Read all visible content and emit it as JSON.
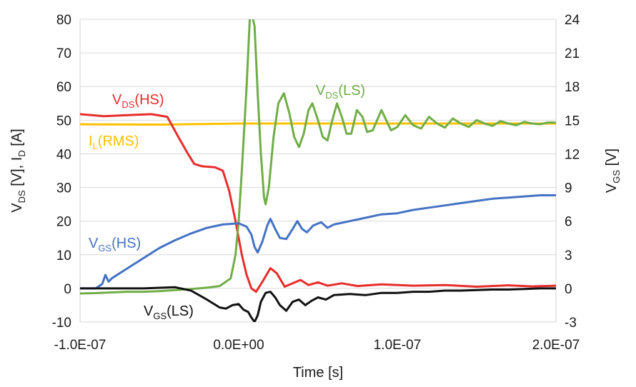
{
  "chart_data": {
    "type": "line",
    "x_axis": {
      "label": "Time [s]",
      "range": [
        -1e-07,
        2e-07
      ],
      "ticks": [
        {
          "value": -1e-07,
          "label": "-1.0E-07"
        },
        {
          "value": 0,
          "label": "0.0E+00"
        },
        {
          "value": 1e-07,
          "label": "1.0E-07"
        },
        {
          "value": 2e-07,
          "label": "2.0E-07"
        }
      ]
    },
    "y_left": {
      "label": {
        "parts": [
          {
            "t": "V",
            "sub": false
          },
          {
            "t": "DS",
            "sub": true
          },
          {
            "t": " [V], I",
            "sub": false
          },
          {
            "t": "D",
            "sub": true
          },
          {
            "t": " [A]",
            "sub": false
          }
        ]
      },
      "range": [
        -10,
        80
      ],
      "ticks": [
        "-10",
        "0",
        "10",
        "20",
        "30",
        "40",
        "50",
        "60",
        "70",
        "80"
      ]
    },
    "y_right": {
      "label": {
        "parts": [
          {
            "t": "V",
            "sub": false
          },
          {
            "t": "GS",
            "sub": true
          },
          {
            "t": " [V]",
            "sub": false
          }
        ]
      },
      "range": [
        -3,
        24
      ],
      "ticks": [
        "-3",
        "0",
        "3",
        "6",
        "9",
        "12",
        "15",
        "18",
        "21",
        "24"
      ]
    },
    "grid": "horizontal",
    "series": [
      {
        "id": "il",
        "axis": "left",
        "color": "#FFC000",
        "label": {
          "parts": [
            {
              "t": "I",
              "sub": false
            },
            {
              "t": "L",
              "sub": true
            },
            {
              "t": "(RMS)",
              "sub": false
            }
          ]
        },
        "points": [
          [
            -1e-07,
            48.8
          ],
          [
            -5e-08,
            48.7
          ],
          [
            0,
            49.0
          ],
          [
            5e-08,
            49.0
          ],
          [
            1e-07,
            49.0
          ],
          [
            1.5e-07,
            49.0
          ],
          [
            2e-07,
            49.0
          ]
        ]
      },
      {
        "id": "vds_hs",
        "axis": "left",
        "color": "#E82C2C",
        "label": {
          "parts": [
            {
              "t": "V",
              "sub": false
            },
            {
              "t": "DS",
              "sub": true
            },
            {
              "t": "(HS)",
              "sub": false
            }
          ]
        },
        "points": [
          [
            -1e-07,
            51.8
          ],
          [
            -8.5e-08,
            51.2
          ],
          [
            -7e-08,
            51.5
          ],
          [
            -5.5e-08,
            51.8
          ],
          [
            -4.5e-08,
            51.0
          ],
          [
            -3.8e-08,
            45.0
          ],
          [
            -3.2e-08,
            40.0
          ],
          [
            -2.8e-08,
            37.0
          ],
          [
            -2.3e-08,
            36.3
          ],
          [
            -1.5e-08,
            36.0
          ],
          [
            -1e-08,
            35.0
          ],
          [
            -6e-09,
            29.0
          ],
          [
            -2e-09,
            20.0
          ],
          [
            2e-09,
            10.0
          ],
          [
            5e-09,
            4.0
          ],
          [
            8e-09,
            0.0
          ],
          [
            1.1e-08,
            -1.0
          ],
          [
            1.5e-08,
            2.0
          ],
          [
            2e-08,
            6.0
          ],
          [
            2.4e-08,
            4.5
          ],
          [
            2.9e-08,
            0.5
          ],
          [
            3.4e-08,
            1.5
          ],
          [
            3.9e-08,
            2.5
          ],
          [
            4.4e-08,
            1.0
          ],
          [
            5e-08,
            1.8
          ],
          [
            5.6e-08,
            0.8
          ],
          [
            6.5e-08,
            1.5
          ],
          [
            7.5e-08,
            0.7
          ],
          [
            9e-08,
            1.2
          ],
          [
            1.1e-07,
            0.8
          ],
          [
            1.3e-07,
            1.0
          ],
          [
            1.5e-07,
            0.5
          ],
          [
            1.7e-07,
            0.9
          ],
          [
            1.85e-07,
            0.6
          ],
          [
            2e-07,
            0.8
          ]
        ]
      },
      {
        "id": "vds_ls",
        "axis": "left",
        "color": "#70AD47",
        "label": {
          "parts": [
            {
              "t": "V",
              "sub": false
            },
            {
              "t": "DS",
              "sub": true
            },
            {
              "t": "(LS)",
              "sub": false
            }
          ]
        },
        "points": [
          [
            -1e-07,
            -1.5
          ],
          [
            -9e-08,
            -1.4
          ],
          [
            -8e-08,
            -1.2
          ],
          [
            -7e-08,
            -1.0
          ],
          [
            -6e-08,
            -1.0
          ],
          [
            -5e-08,
            -0.8
          ],
          [
            -4e-08,
            -0.5
          ],
          [
            -3e-08,
            -0.2
          ],
          [
            -2e-08,
            0.2
          ],
          [
            -1.2e-08,
            0.7
          ],
          [
            -5e-09,
            3.0
          ],
          [
            -2e-09,
            10.0
          ],
          [
            0,
            20.0
          ],
          [
            2e-09,
            35.0
          ],
          [
            5e-09,
            60.0
          ],
          [
            7e-09,
            80.0
          ],
          [
            8e-09,
            82.0
          ],
          [
            1e-08,
            78.0
          ],
          [
            1.2e-08,
            58.0
          ],
          [
            1.4e-08,
            40.0
          ],
          [
            1.6e-08,
            27.0
          ],
          [
            1.7e-08,
            25.0
          ],
          [
            1.9e-08,
            30.0
          ],
          [
            2.2e-08,
            45.0
          ],
          [
            2.5e-08,
            55.0
          ],
          [
            2.85e-08,
            58.0
          ],
          [
            3.2e-08,
            52.0
          ],
          [
            3.5e-08,
            45.0
          ],
          [
            3.8e-08,
            42.0
          ],
          [
            4.1e-08,
            46.0
          ],
          [
            4.4e-08,
            53.0
          ],
          [
            4.65e-08,
            55.0
          ],
          [
            5e-08,
            50.0
          ],
          [
            5.3e-08,
            45.0
          ],
          [
            5.6e-08,
            44.0
          ],
          [
            5.9e-08,
            50.0
          ],
          [
            6.2e-08,
            55.0
          ],
          [
            6.5e-08,
            51.0
          ],
          [
            6.8e-08,
            46.0
          ],
          [
            7.1e-08,
            46.0
          ],
          [
            7.45e-08,
            53.0
          ],
          [
            7.8e-08,
            51.0
          ],
          [
            8.1e-08,
            46.5
          ],
          [
            8.45e-08,
            47.0
          ],
          [
            9e-08,
            53.0
          ],
          [
            9.3e-08,
            50.0
          ],
          [
            9.6e-08,
            47.0
          ],
          [
            1e-07,
            48.0
          ],
          [
            1.05e-07,
            51.5
          ],
          [
            1.1e-07,
            48.5
          ],
          [
            1.15e-07,
            47.5
          ],
          [
            1.2e-07,
            51.0
          ],
          [
            1.25e-07,
            49.0
          ],
          [
            1.3e-07,
            47.8
          ],
          [
            1.35e-07,
            50.5
          ],
          [
            1.4e-07,
            49.0
          ],
          [
            1.45e-07,
            48.0
          ],
          [
            1.5e-07,
            50.0
          ],
          [
            1.55e-07,
            49.0
          ],
          [
            1.6e-07,
            48.3
          ],
          [
            1.65e-07,
            49.7
          ],
          [
            1.7e-07,
            49.0
          ],
          [
            1.75e-07,
            48.5
          ],
          [
            1.8e-07,
            49.5
          ],
          [
            1.85e-07,
            49.0
          ],
          [
            1.9e-07,
            48.8
          ],
          [
            1.95e-07,
            49.3
          ],
          [
            2e-07,
            49.3
          ]
        ]
      },
      {
        "id": "vgs_hs",
        "axis": "right",
        "color": "#4472C4",
        "label": {
          "parts": [
            {
              "t": "V",
              "sub": false
            },
            {
              "t": "GS",
              "sub": true
            },
            {
              "t": "(HS)",
              "sub": false
            }
          ]
        },
        "points": [
          [
            -1e-07,
            0.0
          ],
          [
            -9e-08,
            0.0
          ],
          [
            -8.6e-08,
            0.4
          ],
          [
            -8.4e-08,
            1.2
          ],
          [
            -8.2e-08,
            0.6
          ],
          [
            -8e-08,
            0.9
          ],
          [
            -7e-08,
            1.8
          ],
          [
            -6e-08,
            2.7
          ],
          [
            -5e-08,
            3.6
          ],
          [
            -4e-08,
            4.3
          ],
          [
            -3e-08,
            4.9
          ],
          [
            -2e-08,
            5.4
          ],
          [
            -1e-08,
            5.7
          ],
          [
            0,
            5.8
          ],
          [
            5e-09,
            5.5
          ],
          [
            8e-09,
            4.8
          ],
          [
            1e-08,
            3.7
          ],
          [
            1.2e-08,
            3.2
          ],
          [
            1.5e-08,
            4.2
          ],
          [
            1.8e-08,
            5.6
          ],
          [
            2e-08,
            6.2
          ],
          [
            2.3e-08,
            5.3
          ],
          [
            2.6e-08,
            4.5
          ],
          [
            3e-08,
            4.4
          ],
          [
            3.4e-08,
            5.3
          ],
          [
            3.7e-08,
            6.0
          ],
          [
            4e-08,
            5.3
          ],
          [
            4.3e-08,
            5.0
          ],
          [
            4.7e-08,
            5.6
          ],
          [
            5.2e-08,
            5.9
          ],
          [
            5.6e-08,
            5.4
          ],
          [
            6e-08,
            5.7
          ],
          [
            7e-08,
            6.0
          ],
          [
            8e-08,
            6.3
          ],
          [
            9e-08,
            6.6
          ],
          [
            1e-07,
            6.7
          ],
          [
            1.1e-07,
            7.0
          ],
          [
            1.2e-07,
            7.2
          ],
          [
            1.3e-07,
            7.4
          ],
          [
            1.4e-07,
            7.6
          ],
          [
            1.5e-07,
            7.8
          ],
          [
            1.6e-07,
            8.0
          ],
          [
            1.7e-07,
            8.1
          ],
          [
            1.8e-07,
            8.2
          ],
          [
            1.9e-07,
            8.3
          ],
          [
            2e-07,
            8.3
          ]
        ]
      },
      {
        "id": "vgs_ls",
        "axis": "right",
        "color": "#111111",
        "label": {
          "parts": [
            {
              "t": "V",
              "sub": false
            },
            {
              "t": "GS",
              "sub": true
            },
            {
              "t": "(LS)",
              "sub": false
            }
          ]
        },
        "points": [
          [
            -1e-07,
            0.0
          ],
          [
            -8e-08,
            0.0
          ],
          [
            -6e-08,
            0.0
          ],
          [
            -4e-08,
            0.1
          ],
          [
            -3e-08,
            -0.2
          ],
          [
            -2e-08,
            -1.0
          ],
          [
            -1.2e-08,
            -1.7
          ],
          [
            -8e-09,
            -1.8
          ],
          [
            -4e-09,
            -1.5
          ],
          [
            0,
            -1.4
          ],
          [
            3e-09,
            -1.9
          ],
          [
            6e-09,
            -2.1
          ],
          [
            8e-09,
            -2.6
          ],
          [
            1e-08,
            -3.0
          ],
          [
            1.2e-08,
            -2.4
          ],
          [
            1.4e-08,
            -1.2
          ],
          [
            1.7e-08,
            -0.4
          ],
          [
            2e-08,
            -0.3
          ],
          [
            2.3e-08,
            -0.8
          ],
          [
            2.6e-08,
            -1.5
          ],
          [
            3e-08,
            -2.0
          ],
          [
            3.4e-08,
            -1.2
          ],
          [
            3.8e-08,
            -1.0
          ],
          [
            4.2e-08,
            -1.5
          ],
          [
            4.6e-08,
            -1.1
          ],
          [
            5e-08,
            -0.8
          ],
          [
            5.5e-08,
            -1.0
          ],
          [
            6e-08,
            -0.6
          ],
          [
            7e-08,
            -0.5
          ],
          [
            8e-08,
            -0.6
          ],
          [
            9e-08,
            -0.4
          ],
          [
            1e-07,
            -0.4
          ],
          [
            1.1e-07,
            -0.3
          ],
          [
            1.2e-07,
            -0.3
          ],
          [
            1.3e-07,
            -0.2
          ],
          [
            1.4e-07,
            -0.2
          ],
          [
            1.5e-07,
            -0.15
          ],
          [
            1.6e-07,
            -0.1
          ],
          [
            1.7e-07,
            -0.1
          ],
          [
            1.8e-07,
            -0.05
          ],
          [
            1.9e-07,
            0.0
          ],
          [
            2e-07,
            0.0
          ]
        ]
      }
    ]
  }
}
